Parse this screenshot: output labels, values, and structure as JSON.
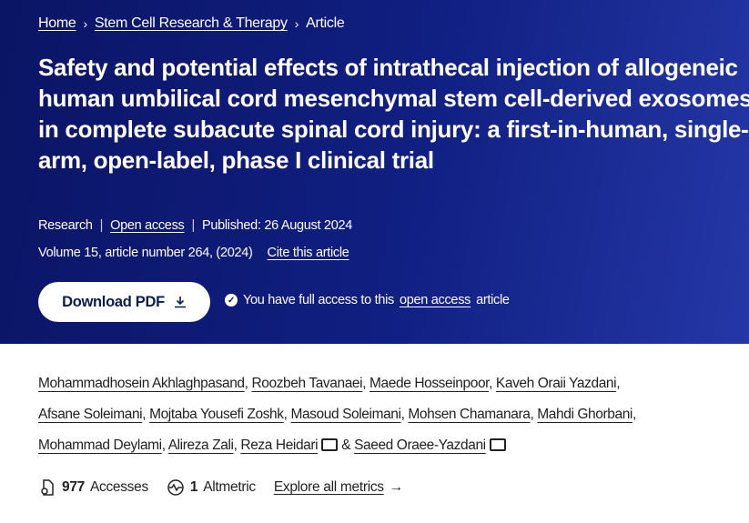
{
  "breadcrumb": [
    {
      "label": "Home"
    },
    {
      "label": "Stem Cell Research & Therapy"
    },
    {
      "label": "Article"
    }
  ],
  "title": "Safety and potential effects of intrathecal injection of allogeneic human umbilical cord mesenchymal stem cell-derived exosomes in complete subacute spinal cord injury: a first-in-human, single-arm, open-label, phase I clinical trial",
  "meta": {
    "type": "Research",
    "access": "Open access",
    "published": "Published: 26 August 2024",
    "volume": "Volume 15, article number 264, (2024)",
    "cite": "Cite this article"
  },
  "download": {
    "label": "Download PDF",
    "icon": "download-icon"
  },
  "access_note": {
    "prefix": "You have full access to this",
    "link": "open access",
    "suffix": "article"
  },
  "authors": [
    "Mohammadhosein Akhlaghpasand",
    "Roozbeh Tavanaei",
    "Maede Hosseinpoor",
    "Kaveh Oraii Yazdani",
    "Afsane Soleimani",
    "Mojtaba Yousefi Zoshk",
    "Masoud Soleimani",
    "Mohsen Chamanara",
    "Mahdi Ghorbani",
    "Mohammad Deylami",
    "Alireza Zali",
    "Reza Heidari",
    "Saeed Oraee-Yazdani"
  ],
  "amp": "&",
  "metrics": {
    "accesses_count": "977",
    "accesses_label": "Accesses",
    "altmetric_count": "1",
    "altmetric_label": "Altmetric",
    "explore": "Explore all metrics"
  }
}
